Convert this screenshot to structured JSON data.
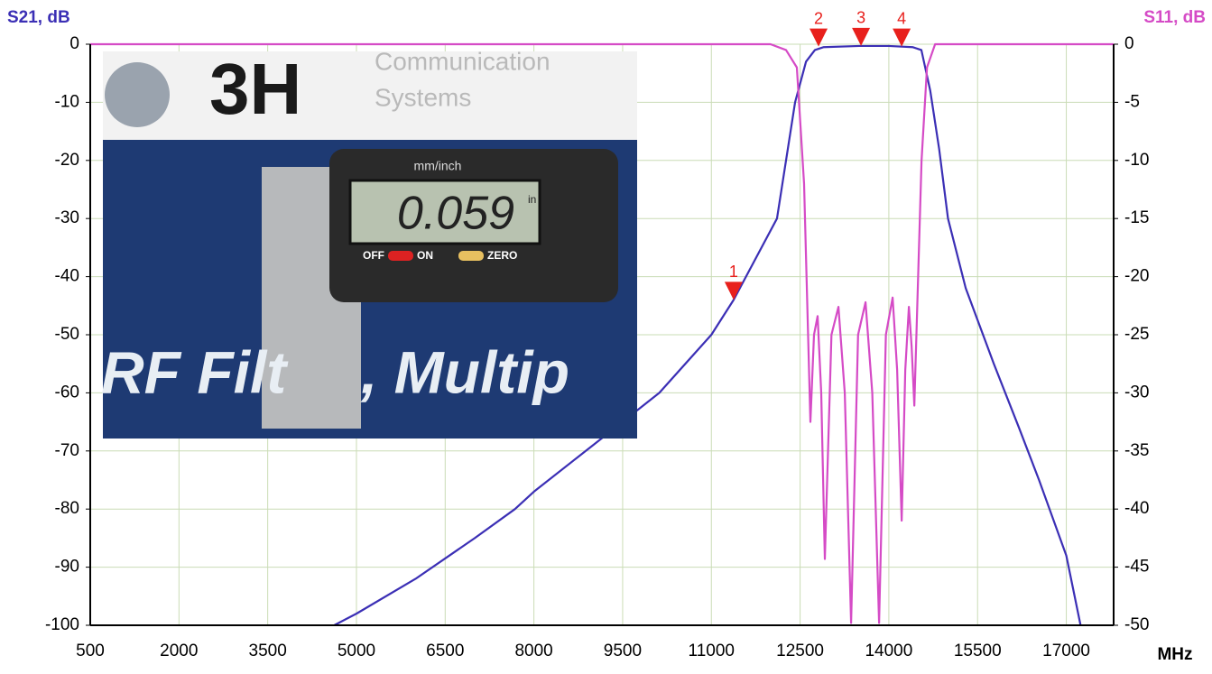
{
  "chart_data": {
    "type": "line",
    "y_label": "S21, dB",
    "y2_label": "S11, dB",
    "x_label": "MHz",
    "xlim": [
      500,
      17800
    ],
    "xticks": [
      500,
      2000,
      3500,
      5000,
      6500,
      8000,
      9500,
      11000,
      12500,
      14000,
      15500,
      17000
    ],
    "ylim": [
      -100,
      0
    ],
    "yticks": [
      0,
      -10,
      -20,
      -30,
      -40,
      -50,
      -60,
      -70,
      -80,
      -90,
      -100
    ],
    "y2lim": [
      -50,
      0
    ],
    "y2ticks": [
      0,
      -5,
      -10,
      -15,
      -20,
      -25,
      -30,
      -35,
      -40,
      -45,
      -50
    ],
    "grid": true,
    "series": [
      {
        "name": "S21",
        "color": "#3b2fb5",
        "x": [
          4624,
          5000,
          6000,
          7000,
          7680,
          8000,
          9000,
          10120,
          11000,
          11376,
          12109,
          12415,
          12600,
          12750,
          12900,
          13500,
          14000,
          14400,
          14550,
          14700,
          14850,
          15000,
          15300,
          15775,
          16200,
          16539,
          17000,
          17241
        ],
        "values": [
          -100,
          -98,
          -92,
          -85,
          -80,
          -77,
          -69,
          -60,
          -50,
          -44,
          -30,
          -10,
          -3,
          -1,
          -0.5,
          -0.3,
          -0.3,
          -0.5,
          -1,
          -8,
          -18,
          -30,
          -42,
          -55,
          -66,
          -75,
          -88,
          -100
        ]
      },
      {
        "name": "S11",
        "color": "#d54bc6",
        "axis": "y2",
        "x": [
          500,
          12000,
          12262,
          12445,
          12567,
          12674,
          12735,
          12796,
          12857,
          12918,
          13030,
          13148,
          13255,
          13362,
          13480,
          13606,
          13720,
          13835,
          13950,
          14064,
          14140,
          14217,
          14278,
          14339,
          14385,
          14431,
          14553,
          14645,
          14782,
          17800
        ],
        "values": [
          0,
          0,
          -0.5,
          -2,
          -12,
          -32.5,
          -25,
          -23.4,
          -30,
          -44.3,
          -25,
          -22.6,
          -30,
          -49.8,
          -25,
          -22.2,
          -30,
          -49.8,
          -25,
          -21.8,
          -28,
          -41,
          -28,
          -22.6,
          -26,
          -31.1,
          -10,
          -2,
          0,
          0
        ]
      }
    ],
    "markers": [
      {
        "label": "1",
        "x": 11376,
        "value": -44
      },
      {
        "label": "2",
        "x": 12812,
        "value": -0.4
      },
      {
        "label": "3",
        "x": 13530,
        "value": -0.3
      },
      {
        "label": "4",
        "x": 14217,
        "value": -0.4
      }
    ]
  },
  "inset": {
    "brand": "3H",
    "company_line1": "Communication",
    "company_line2": "Systems",
    "button_label": "mm/inch",
    "display": "0.059",
    "unit": "in",
    "off": "OFF",
    "on": "ON",
    "zero": "ZERO",
    "banner_left": "RF Filt",
    "banner_right": ", Multip"
  }
}
